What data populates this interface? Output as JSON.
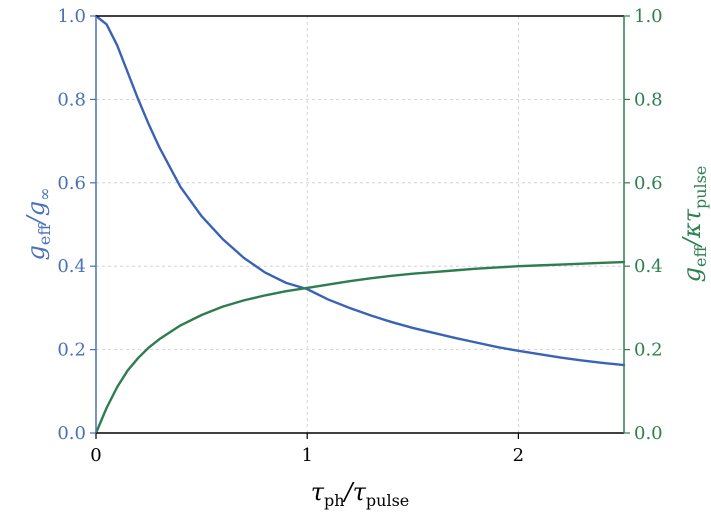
{
  "chart_data": {
    "type": "line",
    "title": "",
    "xlabel": {
      "main": "τ",
      "sub1": "ph",
      "slash": "/τ",
      "sub2": "pulse"
    },
    "ylabel_left": {
      "main": "g",
      "sub1": "eff",
      "slash": "/g",
      "sub2": "∞"
    },
    "ylabel_right": {
      "main": "g",
      "sub1": "eff",
      "slash": "/κτ",
      "sub2": "pulse"
    },
    "xlim": [
      0,
      2.5
    ],
    "ylim_left": [
      0,
      1.0
    ],
    "ylim_right": [
      0,
      1.0
    ],
    "x_ticks": [
      0,
      1,
      2
    ],
    "x_tick_labels": [
      "0",
      "1",
      "2"
    ],
    "y_ticks": [
      0.0,
      0.2,
      0.4,
      0.6,
      0.8,
      1.0
    ],
    "y_tick_labels_left": [
      "0.0",
      "0.2",
      "0.4",
      "0.6",
      "0.8",
      "1.0"
    ],
    "y_tick_labels_right": [
      "0.0",
      "0.2",
      "0.4",
      "0.6",
      "0.8",
      "1.0"
    ],
    "grid": true,
    "colors": {
      "left_axis": "#4a72b8",
      "right_axis": "#2e8050",
      "spine": "#000000",
      "grid": "#cccccc"
    },
    "series": [
      {
        "axis": "left",
        "color": "#3a63b5",
        "x": [
          0,
          0.05,
          0.1,
          0.15,
          0.2,
          0.25,
          0.3,
          0.4,
          0.5,
          0.6,
          0.7,
          0.8,
          0.9,
          1.0,
          1.1,
          1.2,
          1.3,
          1.4,
          1.5,
          1.6,
          1.7,
          1.8,
          1.9,
          2.0,
          2.1,
          2.2,
          2.3,
          2.4,
          2.5
        ],
        "values": [
          1.0,
          0.98,
          0.93,
          0.865,
          0.8,
          0.74,
          0.685,
          0.59,
          0.52,
          0.465,
          0.42,
          0.385,
          0.36,
          0.345,
          0.32,
          0.3,
          0.282,
          0.266,
          0.252,
          0.24,
          0.228,
          0.217,
          0.206,
          0.197,
          0.189,
          0.181,
          0.174,
          0.168,
          0.163
        ]
      },
      {
        "axis": "right",
        "color": "#2e7d4f",
        "x": [
          0,
          0.05,
          0.1,
          0.15,
          0.2,
          0.25,
          0.3,
          0.4,
          0.5,
          0.6,
          0.7,
          0.8,
          0.9,
          1.0,
          1.1,
          1.2,
          1.3,
          1.4,
          1.5,
          1.6,
          1.7,
          1.8,
          1.9,
          2.0,
          2.1,
          2.2,
          2.3,
          2.4,
          2.5
        ],
        "values": [
          0.0,
          0.06,
          0.11,
          0.15,
          0.18,
          0.205,
          0.225,
          0.258,
          0.283,
          0.303,
          0.318,
          0.33,
          0.34,
          0.348,
          0.356,
          0.364,
          0.371,
          0.377,
          0.382,
          0.386,
          0.39,
          0.394,
          0.397,
          0.4,
          0.402,
          0.404,
          0.406,
          0.408,
          0.41
        ]
      }
    ]
  }
}
